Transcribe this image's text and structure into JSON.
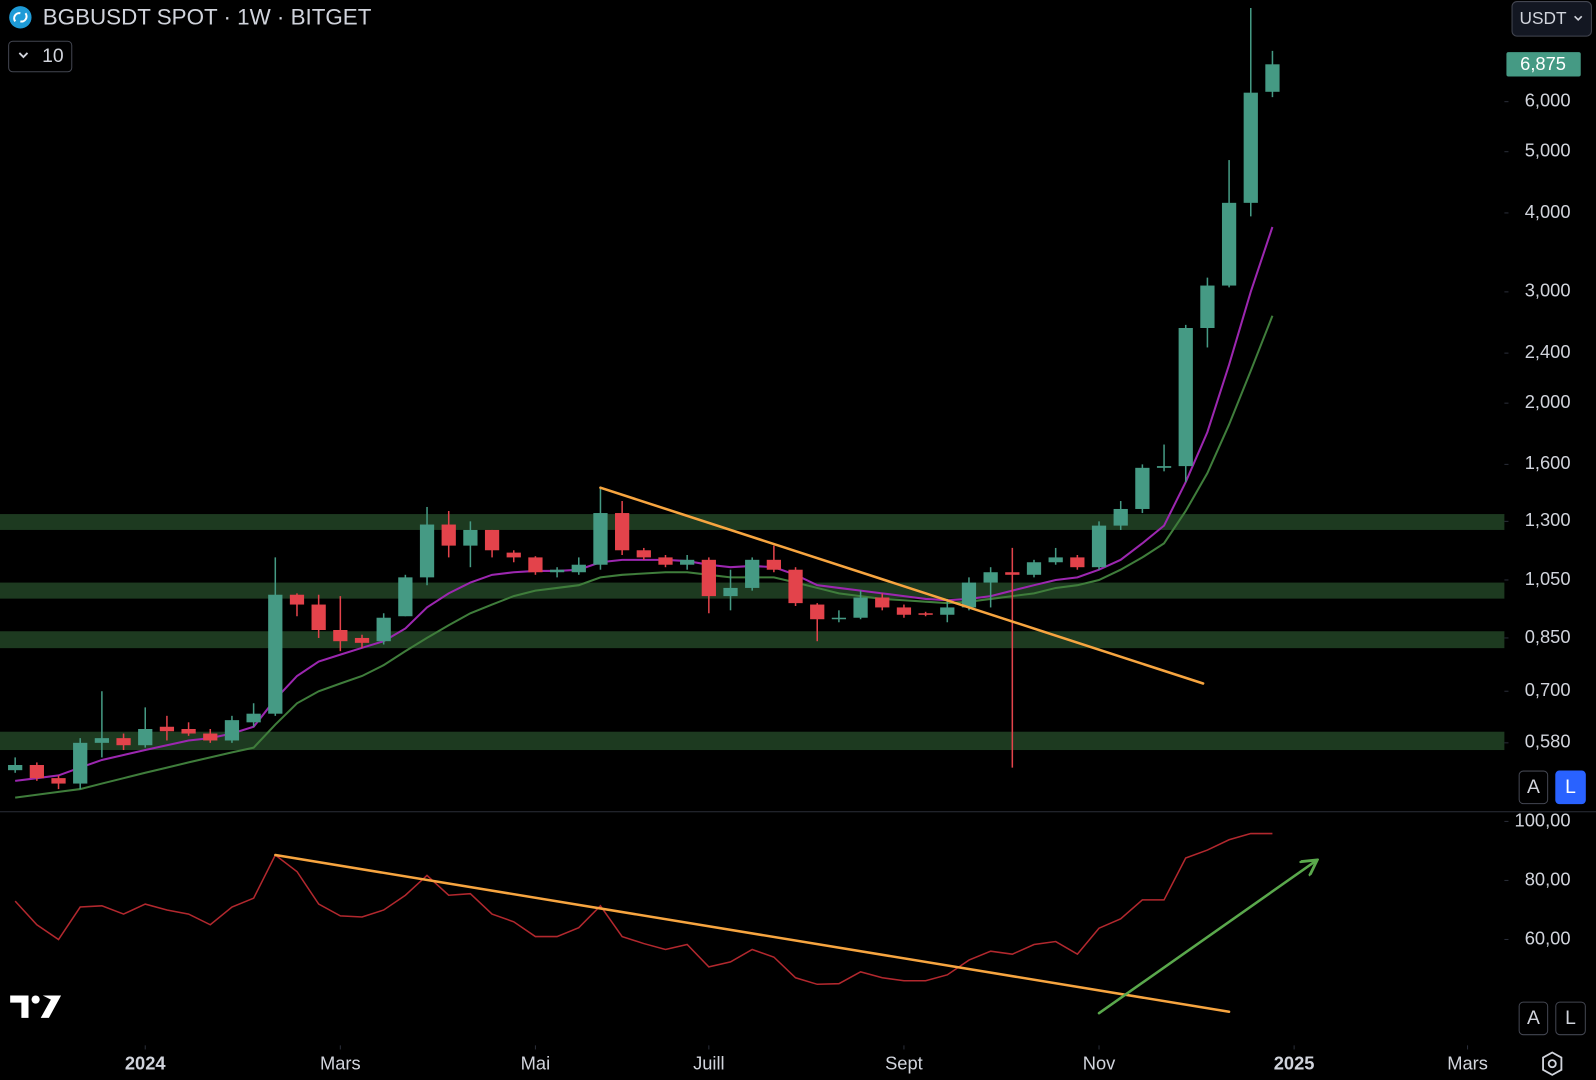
{
  "title": "BGBUSDT SPOT · 1W · BITGET",
  "indicator_button": "10",
  "currency": "USDT",
  "scale_buttons": [
    "A",
    "L"
  ],
  "chart_data": [
    {
      "type": "candlestick",
      "log_scale": true,
      "xlim": [
        -0.7,
        68.7
      ],
      "ylim": [
        0.452,
        8.69
      ],
      "yticks": [
        {
          "value": 0.58,
          "label": "0,580"
        },
        {
          "value": 0.7,
          "label": "0,700"
        },
        {
          "value": 0.85,
          "label": "0,850"
        },
        {
          "value": 1.05,
          "label": "1,050"
        },
        {
          "value": 1.3,
          "label": "1,300"
        },
        {
          "value": 1.6,
          "label": "1,600"
        },
        {
          "value": 2,
          "label": "2,000"
        },
        {
          "value": 2.4,
          "label": "2,400"
        },
        {
          "value": 3,
          "label": "3,000"
        },
        {
          "value": 4,
          "label": "4,000"
        },
        {
          "value": 5,
          "label": "5,000"
        },
        {
          "value": 6,
          "label": "6,000"
        }
      ],
      "open": [
        0.525,
        0.535,
        0.51,
        0.5,
        0.58,
        0.59,
        0.575,
        0.615,
        0.61,
        0.6,
        0.585,
        0.625,
        0.645,
        0.995,
        0.96,
        0.875,
        0.85,
        0.84,
        0.92,
        1.06,
        1.285,
        1.19,
        1.26,
        1.16,
        1.14,
        1.08,
        1.08,
        1.11,
        1.34,
        1.17,
        1.14,
        1.11,
        1.13,
        0.99,
        1.02,
        1.13,
        1.09,
        0.96,
        0.91,
        0.915,
        0.985,
        0.95,
        0.93,
        0.925,
        0.95,
        1.04,
        1.08,
        1.07,
        1.12,
        1.14,
        1.1,
        1.28,
        1.36,
        1.58,
        1.59,
        2.63,
        3.07,
        4.15,
        6.22
      ],
      "high": [
        0.55,
        0.54,
        0.515,
        0.59,
        0.7,
        0.6,
        0.66,
        0.64,
        0.625,
        0.61,
        0.64,
        0.67,
        1.14,
        1.0,
        0.995,
        0.99,
        0.86,
        0.93,
        1.07,
        1.37,
        1.35,
        1.3,
        1.26,
        1.17,
        1.145,
        1.1,
        1.14,
        1.47,
        1.4,
        1.18,
        1.15,
        1.15,
        1.14,
        1.09,
        1.14,
        1.19,
        1.1,
        0.965,
        0.94,
        1.01,
        1.0,
        0.96,
        0.935,
        0.98,
        1.06,
        1.1,
        1.18,
        1.13,
        1.18,
        1.15,
        1.3,
        1.4,
        1.6,
        1.72,
        2.66,
        3.16,
        4.85,
        8.44,
        7.22
      ],
      "low": [
        0.52,
        0.505,
        0.49,
        0.49,
        0.55,
        0.565,
        0.57,
        0.585,
        0.595,
        0.58,
        0.58,
        0.615,
        0.64,
        0.92,
        0.85,
        0.81,
        0.82,
        0.83,
        0.92,
        1.03,
        1.14,
        1.1,
        1.14,
        1.12,
        1.07,
        1.06,
        1.07,
        1.09,
        1.15,
        1.13,
        1.1,
        1.09,
        0.93,
        0.94,
        1.01,
        1.08,
        0.955,
        0.84,
        0.9,
        0.91,
        0.94,
        0.915,
        0.92,
        0.9,
        0.94,
        0.95,
        0.53,
        1.06,
        1.11,
        1.09,
        1.09,
        1.26,
        1.34,
        1.56,
        1.5,
        2.45,
        3.05,
        3.95,
        6.1
      ],
      "close": [
        0.535,
        0.51,
        0.5,
        0.58,
        0.59,
        0.575,
        0.61,
        0.605,
        0.6,
        0.585,
        0.63,
        0.645,
        0.995,
        0.96,
        0.875,
        0.84,
        0.835,
        0.915,
        1.06,
        1.285,
        1.19,
        1.26,
        1.17,
        1.14,
        1.08,
        1.09,
        1.11,
        1.34,
        1.17,
        1.14,
        1.11,
        1.13,
        0.99,
        1.02,
        1.13,
        1.09,
        0.965,
        0.91,
        0.915,
        0.985,
        0.95,
        0.925,
        0.925,
        0.95,
        1.04,
        1.08,
        1.07,
        1.12,
        1.14,
        1.1,
        1.28,
        1.36,
        1.58,
        1.59,
        2.63,
        3.07,
        4.15,
        6.2,
        6.875
      ],
      "up_color": "#459a84",
      "down_color": "#e3434b",
      "close_label": "6,875",
      "lines": [
        {
          "color": "#9c27b0",
          "values": [
            0.505,
            0.51,
            0.515,
            0.53,
            0.545,
            0.555,
            0.565,
            0.575,
            0.585,
            0.59,
            0.6,
            0.615,
            0.68,
            0.74,
            0.78,
            0.8,
            0.82,
            0.84,
            0.88,
            0.95,
            1.0,
            1.04,
            1.07,
            1.08,
            1.085,
            1.085,
            1.09,
            1.12,
            1.13,
            1.13,
            1.13,
            1.125,
            1.11,
            1.1,
            1.105,
            1.1,
            1.07,
            1.03,
            1.02,
            1.01,
            1.0,
            0.99,
            0.98,
            0.975,
            0.98,
            0.99,
            1.01,
            1.03,
            1.05,
            1.06,
            1.09,
            1.13,
            1.2,
            1.28,
            1.5,
            1.8,
            2.3,
            3.0,
            3.8
          ]
        },
        {
          "color": "#3f7d3b",
          "values": [
            0.475,
            0.48,
            0.485,
            0.49,
            0.5,
            0.51,
            0.52,
            0.53,
            0.54,
            0.55,
            0.56,
            0.57,
            0.62,
            0.67,
            0.7,
            0.72,
            0.74,
            0.77,
            0.81,
            0.85,
            0.89,
            0.93,
            0.96,
            0.99,
            1.01,
            1.02,
            1.03,
            1.06,
            1.07,
            1.075,
            1.08,
            1.08,
            1.07,
            1.06,
            1.06,
            1.06,
            1.04,
            1.02,
            1.0,
            0.99,
            0.98,
            0.975,
            0.97,
            0.965,
            0.97,
            0.98,
            0.99,
            1.0,
            1.02,
            1.03,
            1.05,
            1.09,
            1.14,
            1.2,
            1.35,
            1.55,
            1.85,
            2.25,
            2.75
          ]
        }
      ],
      "zones": {
        "color": "#1d3a20",
        "ranges": [
          [
            1.26,
            1.335
          ],
          [
            0.981,
            1.04
          ],
          [
            0.819,
            0.871
          ],
          [
            0.565,
            0.604
          ]
        ]
      },
      "trendlines": [
        {
          "color": "#f7a540",
          "x": [
            27,
            54.8
          ],
          "y": [
            1.47,
            0.72
          ]
        }
      ]
    },
    {
      "type": "line",
      "xlim": [
        -0.7,
        68.7
      ],
      "ylim": [
        24.8,
        103.1
      ],
      "yticks": [
        {
          "value": 60,
          "label": "60,00"
        },
        {
          "value": 80,
          "label": "80,00"
        },
        {
          "value": 100,
          "label": "100,00"
        }
      ],
      "xticks": [
        {
          "value": 6,
          "label": "2024"
        },
        {
          "value": 15,
          "label": "Mars"
        },
        {
          "value": 24,
          "label": "Mai"
        },
        {
          "value": 32,
          "label": "Juill"
        },
        {
          "value": 41,
          "label": "Sept"
        },
        {
          "value": 50,
          "label": "Nov"
        },
        {
          "value": 59,
          "label": "2025"
        },
        {
          "value": 67,
          "label": "Mars"
        }
      ],
      "color": "#b2282e",
      "values": [
        73,
        65,
        60,
        71,
        71.4,
        68.6,
        72,
        70,
        68.6,
        65,
        71,
        74,
        88.6,
        83,
        72,
        68,
        67.6,
        70,
        75,
        81.7,
        75,
        75.5,
        68.6,
        66,
        61,
        61,
        64,
        71.4,
        61,
        58.6,
        56.6,
        58.3,
        50.7,
        52.4,
        56.6,
        54,
        47,
        44.8,
        45,
        49,
        47,
        46,
        46,
        48,
        53,
        56,
        55,
        58.3,
        59.3,
        55,
        63.8,
        67,
        73.4,
        73.4,
        87.6,
        90.3,
        93.8,
        95.9,
        95.9
      ],
      "trendlines": [
        {
          "color": "#f7a540",
          "x": [
            12,
            56
          ],
          "y": [
            88.6,
            35.5
          ]
        },
        {
          "color": "#5aa84c",
          "x": [
            50,
            60
          ],
          "y": [
            35,
            86.6
          ],
          "arrow": true
        }
      ]
    }
  ]
}
